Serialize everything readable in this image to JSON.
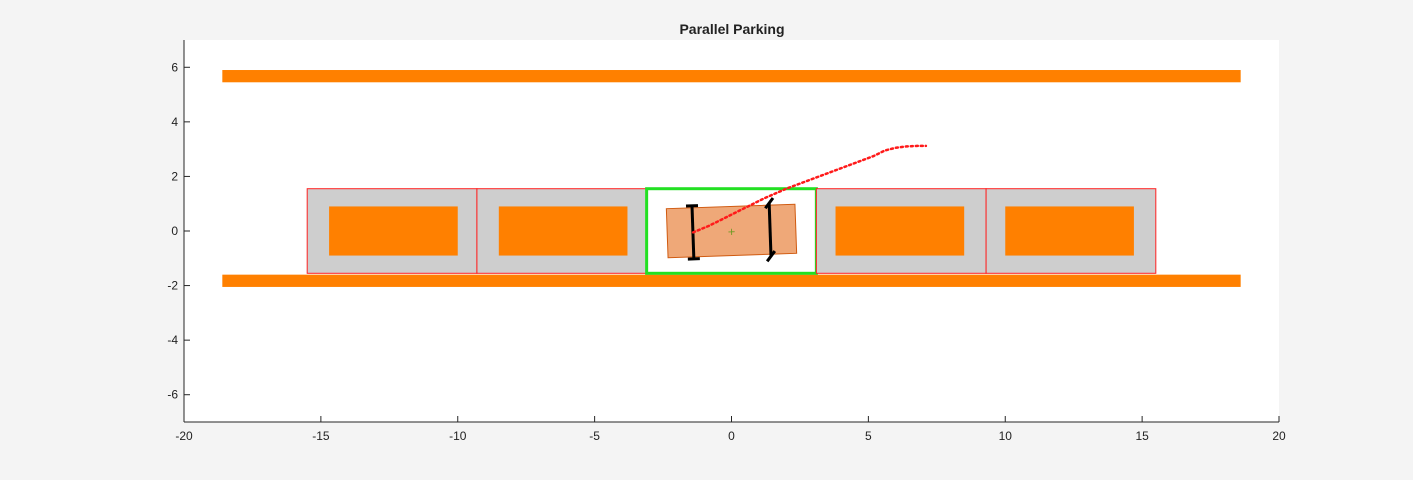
{
  "chart_data": {
    "type": "scatter",
    "title": "Parallel Parking",
    "xlabel": "",
    "ylabel": "",
    "xlim": [
      -20,
      20
    ],
    "ylim": [
      -7,
      7
    ],
    "x_ticks": [
      -20,
      -15,
      -10,
      -5,
      0,
      5,
      10,
      15,
      20
    ],
    "y_ticks": [
      -6,
      -4,
      -2,
      0,
      2,
      4,
      6
    ],
    "grid": false,
    "colors": {
      "background": "#f4f4f4",
      "axes_bg": "#ffffff",
      "curb": "#ff8000",
      "bay_fill": "#cecece",
      "bay_edge": "#ff2020",
      "target_edge": "#22e022",
      "ego_fill": "#efa878",
      "ego_edge": "#d05a10",
      "trajectory": "#ff1a1a",
      "wheel": "#000000"
    },
    "curbs": [
      {
        "x": [
          -18.6,
          18.6
        ],
        "y": [
          5.45,
          5.9
        ]
      },
      {
        "x": [
          -18.6,
          18.6
        ],
        "y": [
          -2.05,
          -1.6
        ]
      }
    ],
    "parking_bays": [
      {
        "x": [
          -15.5,
          -9.3
        ],
        "y": [
          -1.55,
          1.55
        ],
        "occupied": true,
        "car": {
          "x": [
            -14.7,
            -10.0
          ],
          "y": [
            -0.9,
            0.9
          ]
        }
      },
      {
        "x": [
          -9.3,
          -3.1
        ],
        "y": [
          -1.55,
          1.55
        ],
        "occupied": true,
        "car": {
          "x": [
            -8.5,
            -3.8
          ],
          "y": [
            -0.9,
            0.9
          ]
        }
      },
      {
        "x": [
          -3.1,
          3.1
        ],
        "y": [
          -1.55,
          1.55
        ],
        "occupied": false,
        "target": true
      },
      {
        "x": [
          3.1,
          9.3
        ],
        "y": [
          -1.55,
          1.55
        ],
        "occupied": true,
        "car": {
          "x": [
            3.8,
            8.5
          ],
          "y": [
            -0.9,
            0.9
          ]
        }
      },
      {
        "x": [
          9.3,
          15.5
        ],
        "y": [
          -1.55,
          1.55
        ],
        "occupied": true,
        "car": {
          "x": [
            10.0,
            14.7
          ],
          "y": [
            -0.9,
            0.9
          ]
        }
      }
    ],
    "ego_vehicle": {
      "center": [
        0.0,
        0.0
      ],
      "length": 4.7,
      "width": 1.8,
      "heading_deg": 2.0
    },
    "trajectory": {
      "x": [
        -1.4,
        -0.8,
        -0.2,
        0.5,
        1.2,
        2.0,
        2.8,
        3.6,
        4.4,
        5.2,
        5.6,
        6.0,
        6.4,
        6.8,
        7.1
      ],
      "y": [
        -0.05,
        0.2,
        0.5,
        0.85,
        1.2,
        1.55,
        1.85,
        2.15,
        2.45,
        2.75,
        2.95,
        3.05,
        3.1,
        3.12,
        3.12
      ]
    }
  }
}
